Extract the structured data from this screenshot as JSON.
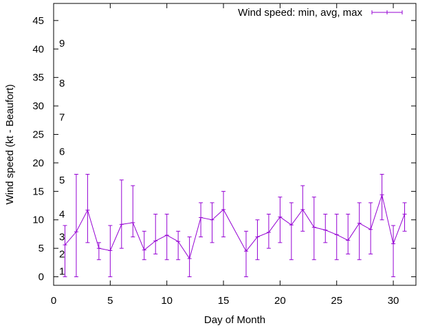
{
  "chart_data": {
    "type": "line",
    "xlabel": "Day of Month",
    "ylabel": "Wind speed (kt - Beaufort)",
    "xlim": [
      0,
      32
    ],
    "ylim": [
      -1.5,
      48
    ],
    "x_ticks": [
      0,
      5,
      10,
      15,
      20,
      25,
      30
    ],
    "y_ticks": [
      0,
      5,
      10,
      15,
      20,
      25,
      30,
      35,
      40,
      45
    ],
    "grid": false,
    "legend_position": "top-right",
    "color": "#9400d3",
    "beaufort_labels": [
      {
        "label": "1",
        "kt": 1
      },
      {
        "label": "2",
        "kt": 4
      },
      {
        "label": "3",
        "kt": 7
      },
      {
        "label": "4",
        "kt": 11
      },
      {
        "label": "5",
        "kt": 17
      },
      {
        "label": "6",
        "kt": 22
      },
      {
        "label": "7",
        "kt": 28
      },
      {
        "label": "8",
        "kt": 34
      },
      {
        "label": "9",
        "kt": 41
      }
    ],
    "series": [
      {
        "name": "Wind speed: min, avg, max",
        "x": [
          1,
          2,
          3,
          4,
          5,
          6,
          7,
          8,
          9,
          10,
          11,
          12,
          13,
          14,
          15,
          17,
          18,
          19,
          20,
          21,
          22,
          23,
          24,
          25,
          26,
          27,
          28,
          29,
          30,
          31
        ],
        "avg": [
          5.6,
          7.9,
          11.7,
          5,
          4.6,
          9.2,
          9.5,
          4.7,
          6.3,
          7.3,
          6.2,
          3.2,
          10.4,
          10,
          11.8,
          4.5,
          7,
          7.8,
          10.5,
          9.1,
          11.8,
          8.7,
          8.2,
          7.4,
          6.4,
          9.4,
          8.3,
          14.4,
          5.8,
          11
        ],
        "min": [
          0,
          0,
          6,
          3,
          0,
          5,
          7,
          3,
          4,
          3,
          3,
          0,
          7,
          6,
          7,
          0,
          3,
          5,
          6,
          3,
          8,
          3,
          6,
          3,
          4,
          3,
          4,
          10,
          0,
          8
        ],
        "max": [
          9,
          18,
          18,
          6,
          9,
          17,
          16,
          8,
          11,
          11,
          8,
          7,
          13,
          13,
          15,
          8,
          10,
          11,
          14,
          13,
          16,
          14,
          11,
          11,
          11,
          13,
          13,
          18,
          9,
          13
        ]
      }
    ]
  }
}
